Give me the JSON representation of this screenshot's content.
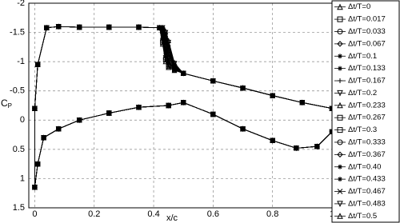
{
  "chart_data": {
    "type": "line",
    "xlabel": "x/c",
    "ylabel": "C",
    "ylabel_subscript": "P",
    "xlim": [
      -0.02,
      1
    ],
    "ylim": [
      -2,
      1.5
    ],
    "y_inverted": true,
    "xticks": [
      0,
      0.2,
      0.4,
      0.6,
      0.8,
      1
    ],
    "yticks": [
      -2,
      -1.5,
      -1,
      -0.5,
      0,
      0.5,
      1,
      1.5
    ],
    "grid": true,
    "legend": "right",
    "x": [
      1,
      0.9,
      0.8,
      0.7,
      0.6,
      0.5,
      0.47,
      0.45,
      0.44,
      0.43,
      0.42,
      0.35,
      0.25,
      0.15,
      0.08,
      0.04,
      0.01,
      0,
      0,
      0.01,
      0.03,
      0.08,
      0.15,
      0.25,
      0.35,
      0.45,
      0.5,
      0.6,
      0.7,
      0.8,
      0.88,
      0.95,
      1
    ],
    "series": [
      {
        "name": "Δt/T=0",
        "color": "#000000",
        "marker": "triangle-up",
        "values": [
          -0.2,
          -0.3,
          -0.42,
          -0.55,
          -0.67,
          -0.8,
          -0.85,
          -0.9,
          -1.0,
          -1.3,
          -1.58,
          -1.59,
          -1.59,
          -1.59,
          -1.6,
          -1.58,
          -0.95,
          -0.2,
          1.15,
          0.75,
          0.3,
          0.15,
          0,
          -0.12,
          -0.22,
          -0.25,
          -0.3,
          -0.1,
          0.15,
          0.35,
          0.48,
          0.45,
          0.2
        ]
      },
      {
        "name": "Δt/T=0.017",
        "color": "#000000",
        "marker": "square",
        "values": [
          -0.2,
          -0.3,
          -0.42,
          -0.55,
          -0.67,
          -0.8,
          -0.86,
          -0.92,
          -1.03,
          -1.33,
          -1.58,
          -1.59,
          -1.59,
          -1.59,
          -1.6,
          -1.58,
          -0.95,
          -0.2,
          1.15,
          0.75,
          0.3,
          0.15,
          0,
          -0.12,
          -0.22,
          -0.25,
          -0.3,
          -0.1,
          0.15,
          0.35,
          0.48,
          0.45,
          0.2
        ]
      },
      {
        "name": "Δt/T=0.033",
        "color": "#000000",
        "marker": "circle",
        "values": [
          -0.2,
          -0.3,
          -0.42,
          -0.55,
          -0.67,
          -0.8,
          -0.86,
          -0.94,
          -1.06,
          -1.36,
          -1.58,
          -1.59,
          -1.59,
          -1.59,
          -1.6,
          -1.58,
          -0.95,
          -0.2,
          1.15,
          0.75,
          0.3,
          0.15,
          0,
          -0.12,
          -0.22,
          -0.25,
          -0.3,
          -0.1,
          0.15,
          0.35,
          0.48,
          0.45,
          0.2
        ]
      },
      {
        "name": "Δt/T=0.067",
        "color": "#000000",
        "marker": "diamond",
        "values": [
          -0.2,
          -0.3,
          -0.42,
          -0.55,
          -0.67,
          -0.8,
          -0.87,
          -0.96,
          -1.1,
          -1.39,
          -1.58,
          -1.59,
          -1.59,
          -1.59,
          -1.6,
          -1.58,
          -0.95,
          -0.2,
          1.15,
          0.75,
          0.3,
          0.15,
          0,
          -0.12,
          -0.22,
          -0.25,
          -0.3,
          -0.1,
          0.15,
          0.35,
          0.48,
          0.45,
          0.2
        ]
      },
      {
        "name": "Δt/T=0.1",
        "color": "#000000",
        "marker": "star",
        "values": [
          -0.2,
          -0.3,
          -0.42,
          -0.55,
          -0.67,
          -0.8,
          -0.87,
          -0.98,
          -1.14,
          -1.42,
          -1.58,
          -1.59,
          -1.59,
          -1.59,
          -1.6,
          -1.58,
          -0.95,
          -0.2,
          1.15,
          0.75,
          0.3,
          0.15,
          0,
          -0.12,
          -0.22,
          -0.25,
          -0.3,
          -0.1,
          0.15,
          0.35,
          0.48,
          0.45,
          0.2
        ]
      },
      {
        "name": "Δt/T=0.133",
        "color": "#000000",
        "marker": "star",
        "values": [
          -0.2,
          -0.3,
          -0.42,
          -0.55,
          -0.67,
          -0.8,
          -0.88,
          -1.0,
          -1.18,
          -1.45,
          -1.58,
          -1.59,
          -1.59,
          -1.59,
          -1.6,
          -1.58,
          -0.95,
          -0.2,
          1.15,
          0.75,
          0.3,
          0.15,
          0,
          -0.12,
          -0.22,
          -0.25,
          -0.3,
          -0.1,
          0.15,
          0.35,
          0.48,
          0.45,
          0.2
        ]
      },
      {
        "name": "Δt/T=0.167",
        "color": "#000000",
        "marker": "plus",
        "values": [
          -0.2,
          -0.3,
          -0.42,
          -0.55,
          -0.67,
          -0.8,
          -0.88,
          -1.03,
          -1.22,
          -1.48,
          -1.58,
          -1.59,
          -1.59,
          -1.59,
          -1.6,
          -1.58,
          -0.95,
          -0.2,
          1.15,
          0.75,
          0.3,
          0.15,
          0,
          -0.12,
          -0.22,
          -0.25,
          -0.3,
          -0.1,
          0.15,
          0.35,
          0.48,
          0.45,
          0.2
        ]
      },
      {
        "name": "Δt/T=0.2",
        "color": "#000000",
        "marker": "triangle-down",
        "values": [
          -0.2,
          -0.3,
          -0.42,
          -0.55,
          -0.67,
          -0.8,
          -0.89,
          -1.06,
          -1.26,
          -1.5,
          -1.58,
          -1.59,
          -1.59,
          -1.59,
          -1.6,
          -1.58,
          -0.95,
          -0.2,
          1.15,
          0.75,
          0.3,
          0.15,
          0,
          -0.12,
          -0.22,
          -0.25,
          -0.3,
          -0.1,
          0.15,
          0.35,
          0.48,
          0.45,
          0.2
        ]
      },
      {
        "name": "Δt/T=0.233",
        "color": "#000000",
        "marker": "triangle-up",
        "values": [
          -0.2,
          -0.3,
          -0.42,
          -0.55,
          -0.67,
          -0.8,
          -0.9,
          -1.09,
          -1.3,
          -1.52,
          -1.58,
          -1.59,
          -1.59,
          -1.59,
          -1.6,
          -1.58,
          -0.95,
          -0.2,
          1.15,
          0.75,
          0.3,
          0.15,
          0,
          -0.12,
          -0.22,
          -0.25,
          -0.3,
          -0.1,
          0.15,
          0.35,
          0.48,
          0.45,
          0.2
        ]
      },
      {
        "name": "Δt/T=0.267",
        "color": "#000000",
        "marker": "square",
        "values": [
          -0.2,
          -0.3,
          -0.42,
          -0.55,
          -0.67,
          -0.8,
          -0.9,
          -1.12,
          -1.34,
          -1.54,
          -1.58,
          -1.59,
          -1.59,
          -1.59,
          -1.6,
          -1.58,
          -0.95,
          -0.2,
          1.15,
          0.75,
          0.3,
          0.15,
          0,
          -0.12,
          -0.22,
          -0.25,
          -0.3,
          -0.1,
          0.15,
          0.35,
          0.48,
          0.45,
          0.2
        ]
      },
      {
        "name": "Δt/T=0.3",
        "color": "#000000",
        "marker": "square",
        "values": [
          -0.2,
          -0.3,
          -0.42,
          -0.55,
          -0.67,
          -0.8,
          -0.91,
          -1.15,
          -1.37,
          -1.55,
          -1.58,
          -1.59,
          -1.59,
          -1.59,
          -1.6,
          -1.58,
          -0.95,
          -0.2,
          1.15,
          0.75,
          0.3,
          0.15,
          0,
          -0.12,
          -0.22,
          -0.25,
          -0.3,
          -0.1,
          0.15,
          0.35,
          0.48,
          0.45,
          0.2
        ]
      },
      {
        "name": "Δt/T=0.333",
        "color": "#000000",
        "marker": "circle",
        "values": [
          -0.2,
          -0.3,
          -0.42,
          -0.55,
          -0.67,
          -0.8,
          -0.92,
          -1.18,
          -1.4,
          -1.56,
          -1.58,
          -1.59,
          -1.59,
          -1.59,
          -1.6,
          -1.58,
          -0.95,
          -0.2,
          1.15,
          0.75,
          0.3,
          0.15,
          0,
          -0.12,
          -0.22,
          -0.25,
          -0.3,
          -0.1,
          0.15,
          0.35,
          0.48,
          0.45,
          0.2
        ]
      },
      {
        "name": "Δt/T=0.367",
        "color": "#000000",
        "marker": "diamond",
        "values": [
          -0.2,
          -0.3,
          -0.42,
          -0.55,
          -0.67,
          -0.8,
          -0.93,
          -1.21,
          -1.43,
          -1.57,
          -1.58,
          -1.59,
          -1.59,
          -1.59,
          -1.6,
          -1.58,
          -0.95,
          -0.2,
          1.15,
          0.75,
          0.3,
          0.15,
          0,
          -0.12,
          -0.22,
          -0.25,
          -0.3,
          -0.1,
          0.15,
          0.35,
          0.48,
          0.45,
          0.2
        ]
      },
      {
        "name": "Δt/T=0.40",
        "color": "#000000",
        "marker": "star",
        "values": [
          -0.2,
          -0.3,
          -0.42,
          -0.55,
          -0.67,
          -0.8,
          -0.94,
          -1.24,
          -1.45,
          -1.57,
          -1.58,
          -1.59,
          -1.59,
          -1.59,
          -1.6,
          -1.58,
          -0.95,
          -0.2,
          1.15,
          0.75,
          0.3,
          0.15,
          0,
          -0.12,
          -0.22,
          -0.25,
          -0.3,
          -0.1,
          0.15,
          0.35,
          0.48,
          0.45,
          0.2
        ]
      },
      {
        "name": "Δt/T=0.433",
        "color": "#000000",
        "marker": "star",
        "values": [
          -0.2,
          -0.3,
          -0.42,
          -0.55,
          -0.67,
          -0.8,
          -0.95,
          -1.27,
          -1.47,
          -1.58,
          -1.58,
          -1.59,
          -1.59,
          -1.59,
          -1.6,
          -1.58,
          -0.95,
          -0.2,
          1.15,
          0.75,
          0.3,
          0.15,
          0,
          -0.12,
          -0.22,
          -0.25,
          -0.3,
          -0.1,
          0.15,
          0.35,
          0.48,
          0.45,
          0.2
        ]
      },
      {
        "name": "Δt/T=0.467",
        "color": "#000000",
        "marker": "cross",
        "values": [
          -0.2,
          -0.3,
          -0.42,
          -0.55,
          -0.67,
          -0.8,
          -0.96,
          -1.3,
          -1.49,
          -1.58,
          -1.58,
          -1.59,
          -1.59,
          -1.59,
          -1.6,
          -1.58,
          -0.95,
          -0.2,
          1.15,
          0.75,
          0.3,
          0.15,
          0,
          -0.12,
          -0.22,
          -0.25,
          -0.3,
          -0.1,
          0.15,
          0.35,
          0.48,
          0.45,
          0.2
        ]
      },
      {
        "name": "Δt/T=0.483",
        "color": "#000000",
        "marker": "triangle-down",
        "values": [
          -0.2,
          -0.3,
          -0.42,
          -0.55,
          -0.67,
          -0.8,
          -0.97,
          -1.33,
          -1.5,
          -1.58,
          -1.58,
          -1.59,
          -1.59,
          -1.59,
          -1.6,
          -1.58,
          -0.95,
          -0.2,
          1.15,
          0.75,
          0.3,
          0.15,
          0,
          -0.12,
          -0.22,
          -0.25,
          -0.3,
          -0.1,
          0.15,
          0.35,
          0.48,
          0.45,
          0.2
        ]
      },
      {
        "name": "Δt/T=0.5",
        "color": "#000000",
        "marker": "triangle-up",
        "values": [
          -0.2,
          -0.3,
          -0.42,
          -0.55,
          -0.67,
          -0.8,
          -0.98,
          -1.36,
          -1.52,
          -1.58,
          -1.58,
          -1.59,
          -1.59,
          -1.59,
          -1.6,
          -1.58,
          -0.95,
          -0.2,
          1.15,
          0.75,
          0.3,
          0.15,
          0,
          -0.12,
          -0.22,
          -0.25,
          -0.3,
          -0.1,
          0.15,
          0.35,
          0.48,
          0.45,
          0.2
        ]
      }
    ]
  }
}
